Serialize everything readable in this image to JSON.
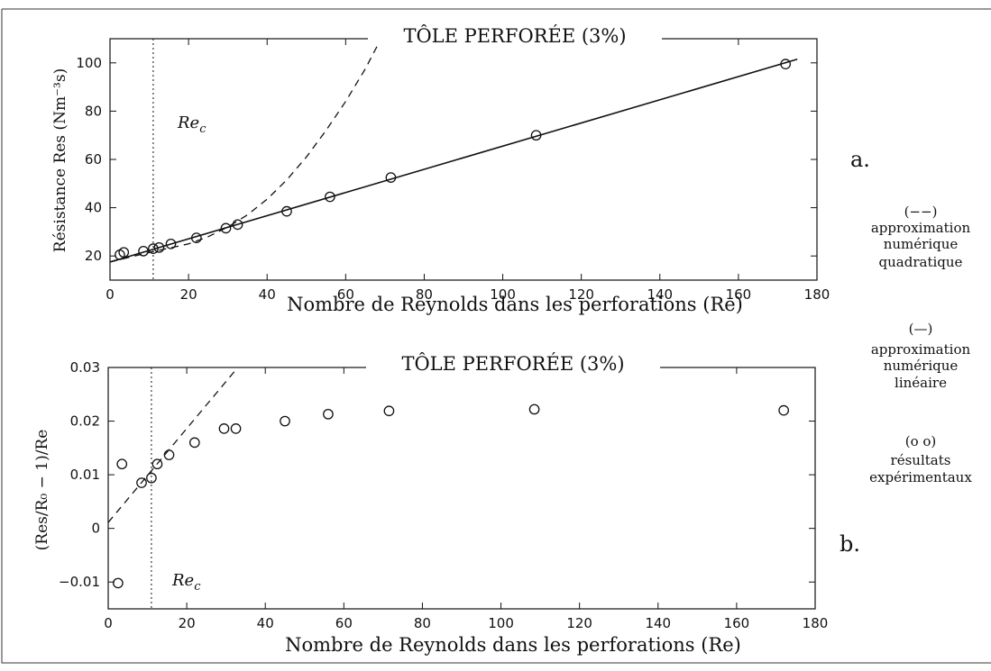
{
  "chart_data": [
    {
      "type": "scatter",
      "panel_tag": "a.",
      "title": "TÔLE PERFORÉE (3%)",
      "xlabel": "Nombre de Reynolds dans les perforations (Re)",
      "ylabel": "Résistance Res  (Nm⁻³s)",
      "xlim": [
        0,
        180
      ],
      "ylim": [
        10,
        110
      ],
      "xticks": [
        0,
        20,
        40,
        60,
        80,
        100,
        120,
        140,
        160,
        180
      ],
      "yticks": [
        20,
        40,
        60,
        80,
        100
      ],
      "grid": false,
      "critical_line": {
        "x": 11,
        "label": "Re_c"
      },
      "series": [
        {
          "style": "markers",
          "x": [
            2.5,
            3.5,
            8.5,
            11,
            12.5,
            15.5,
            22,
            29.5,
            32.5,
            45,
            56,
            71.5,
            108.5,
            172
          ],
          "y": [
            20.5,
            21.5,
            22,
            23,
            23.5,
            25,
            27.5,
            31.5,
            33,
            38.5,
            44.5,
            52.5,
            70,
            99.5
          ]
        },
        {
          "style": "solid-line",
          "x": [
            0,
            175
          ],
          "y": [
            17.5,
            101.5
          ]
        },
        {
          "style": "dashed-line",
          "x": [
            0,
            10,
            20,
            25,
            30,
            35,
            40,
            45,
            50,
            55,
            60,
            65,
            69
          ],
          "y": [
            17.5,
            21.5,
            25,
            28,
            32,
            37,
            43.5,
            51.5,
            61,
            72,
            84,
            97.5,
            110
          ]
        }
      ]
    },
    {
      "type": "scatter",
      "panel_tag": "b.",
      "title": "TÔLE PERFORÉE (3%)",
      "xlabel": "Nombre de Reynolds dans les perforations (Re)",
      "ylabel": "(Res/R₀ − 1)/Re",
      "xlim": [
        0,
        180
      ],
      "ylim": [
        -0.015,
        0.03
      ],
      "xticks": [
        0,
        20,
        40,
        60,
        80,
        100,
        120,
        140,
        160,
        180
      ],
      "yticks": [
        -0.01,
        0,
        0.01,
        0.02,
        0.03
      ],
      "ytick_labels": [
        "−0.01",
        "0",
        "0.01",
        "0.02",
        "0.03"
      ],
      "grid": false,
      "critical_line": {
        "x": 11,
        "label": "Re_c"
      },
      "series": [
        {
          "style": "markers",
          "x": [
            2.5,
            3.5,
            8.5,
            11,
            12.5,
            15.5,
            22,
            29.5,
            32.5,
            45,
            56,
            71.5,
            108.5,
            172
          ],
          "y": [
            -0.0102,
            0.012,
            0.0085,
            0.0094,
            0.012,
            0.0137,
            0.016,
            0.0186,
            0.0186,
            0.02,
            0.0213,
            0.0219,
            0.0222,
            0.022
          ]
        },
        {
          "style": "dashed-line",
          "x": [
            0,
            33
          ],
          "y": [
            0.0011,
            0.03
          ]
        }
      ]
    }
  ],
  "legend": {
    "dashed": {
      "symbol": "(−−)",
      "lines": [
        "approximation",
        "numérique",
        "quadratique"
      ]
    },
    "solid": {
      "symbol": "(—)",
      "lines": [
        "approximation",
        "numérique",
        "linéaire"
      ]
    },
    "markers": {
      "symbol": "(o o)",
      "lines": [
        "résultats",
        "expérimentaux"
      ]
    }
  }
}
